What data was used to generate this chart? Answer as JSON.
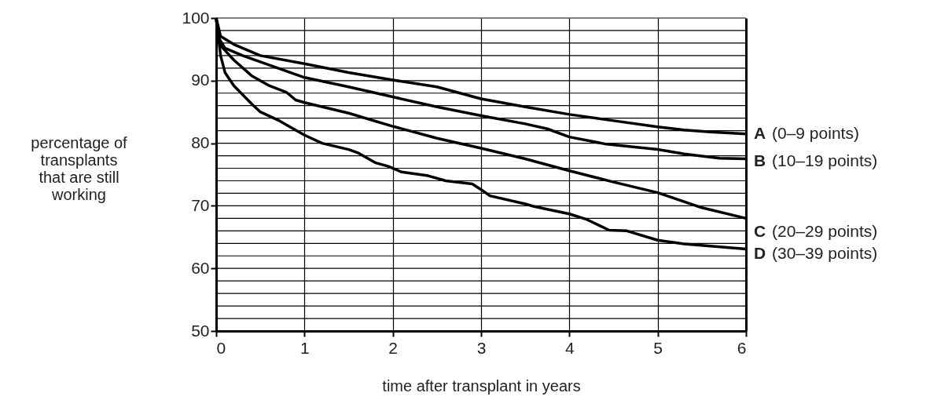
{
  "chart_data": {
    "type": "line",
    "xlabel": "time after transplant in years",
    "ylabel": "percentage of transplants that are still working",
    "xlim": [
      0,
      6
    ],
    "xticks": [
      0,
      1,
      2,
      3,
      4,
      5,
      6
    ],
    "ylim": [
      50,
      100
    ],
    "yticks": [
      50,
      {
        "value": 52,
        "label": null
      },
      {
        "value": 54,
        "label": null
      },
      {
        "value": 56,
        "label": null
      },
      {
        "value": 58,
        "label": null
      },
      60,
      {
        "value": 62,
        "label": null
      },
      {
        "value": 64,
        "label": null
      },
      {
        "value": 66,
        "label": null
      },
      {
        "value": 68,
        "label": null
      },
      70,
      {
        "value": 72,
        "label": null
      },
      {
        "value": 74,
        "label": null
      },
      {
        "value": 76,
        "label": null
      },
      {
        "value": 78,
        "label": null
      },
      80,
      {
        "value": 82,
        "label": null
      },
      {
        "value": 84,
        "label": null
      },
      {
        "value": 86,
        "label": null
      },
      {
        "value": 88,
        "label": null
      },
      90,
      {
        "value": 92,
        "label": null
      },
      {
        "value": 94,
        "label": null
      },
      {
        "value": 96,
        "label": null
      },
      {
        "value": 98,
        "label": null
      },
      100
    ],
    "grid": true,
    "legend": false,
    "marker": "none",
    "line_style": "solid",
    "series": [
      {
        "name": "A (0–9 points)",
        "color": "#000000",
        "x": [
          0,
          0.05,
          0.2,
          0.5,
          1,
          1.5,
          2,
          2.5,
          3,
          3.5,
          4,
          4.5,
          5,
          5.3,
          5.6,
          6
        ],
        "values": [
          100,
          97.1,
          95.8,
          94.0,
          92.7,
          91.3,
          90.1,
          89.0,
          87.1,
          85.8,
          84.6,
          83.6,
          82.6,
          82.1,
          81.8,
          81.5
        ]
      },
      {
        "name": "B (10–19 points)",
        "color": "#000000",
        "x": [
          0,
          0.02,
          0.1,
          0.3,
          0.5,
          1,
          1.5,
          2,
          2.5,
          3,
          3.5,
          3.75,
          4,
          4.4,
          5,
          5.3,
          5.7,
          6
        ],
        "values": [
          100,
          97.0,
          95.2,
          94.0,
          93.0,
          90.5,
          89.0,
          87.4,
          85.8,
          84.4,
          83.1,
          82.3,
          81.0,
          79.9,
          79.0,
          78.3,
          77.6,
          77.5
        ]
      },
      {
        "name": "C (20–29 points)",
        "color": "#000000",
        "x": [
          0,
          0.05,
          0.2,
          0.4,
          0.6,
          0.8,
          0.9,
          1,
          1.5,
          2,
          2.5,
          3,
          3.5,
          4,
          4.5,
          5,
          5.5,
          6
        ],
        "values": [
          100,
          95.6,
          93.3,
          90.8,
          89.2,
          88.1,
          86.9,
          86.5,
          84.8,
          82.7,
          80.8,
          79.2,
          77.5,
          75.6,
          73.8,
          72.1,
          69.7,
          68.0
        ]
      },
      {
        "name": "D (30–39 points)",
        "color": "#000000",
        "x": [
          0,
          0.05,
          0.1,
          0.2,
          0.4,
          0.5,
          0.7,
          0.8,
          1,
          1.2,
          1.5,
          1.6,
          1.8,
          1.95,
          2.1,
          2.4,
          2.6,
          2.9,
          3.0,
          3.1,
          3.5,
          3.6,
          4,
          4.2,
          4.45,
          4.65,
          5,
          5.3,
          6
        ],
        "values": [
          100,
          94.0,
          91.3,
          89.2,
          86.3,
          85.0,
          83.7,
          82.9,
          81.3,
          80.0,
          79.0,
          78.5,
          76.9,
          76.3,
          75.4,
          74.8,
          74.0,
          73.5,
          72.6,
          71.6,
          70.3,
          69.9,
          68.7,
          67.8,
          66.1,
          66.0,
          64.5,
          63.9,
          63.1
        ]
      }
    ]
  }
}
